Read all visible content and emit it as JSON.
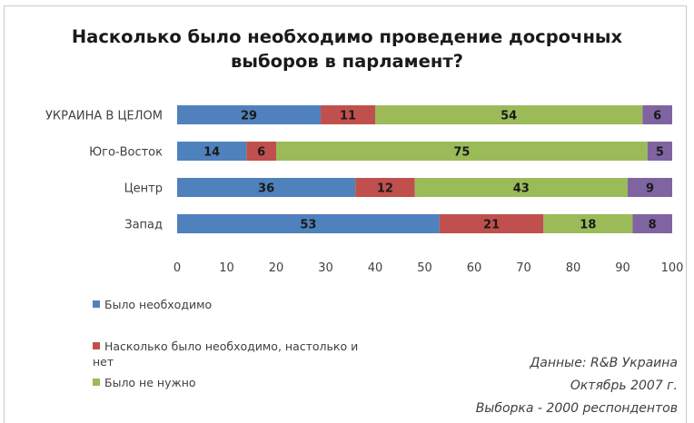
{
  "chart_data": {
    "type": "bar",
    "orientation": "horizontal",
    "stacked": true,
    "title_lines": [
      "Насколько было необходимо проведение досрочных",
      "выборов в парламент?"
    ],
    "categories": [
      "УКРАИНА В ЦЕЛОМ",
      "Юго-Восток",
      "Центр",
      "Запад"
    ],
    "series": [
      {
        "name": "Было необходимо",
        "color": "#4f81bd",
        "values": [
          29,
          14,
          36,
          53
        ]
      },
      {
        "name": "Насколько было необходимо, настолько и нет",
        "color": "#c0504d",
        "values": [
          11,
          6,
          12,
          21
        ]
      },
      {
        "name": "Было не нужно",
        "color": "#9bbb59",
        "values": [
          54,
          75,
          43,
          18
        ]
      },
      {
        "name": "",
        "color": "#8064a2",
        "values": [
          6,
          5,
          9,
          8
        ]
      }
    ],
    "xlim": [
      0,
      100
    ],
    "xticks": [
      "0",
      "10",
      "20",
      "30",
      "40",
      "50",
      "60",
      "70",
      "80",
      "90",
      "100"
    ],
    "grid": false,
    "legend_position": "bottom-left"
  },
  "legend": {
    "item1": "Было необходимо",
    "item2_line1": "Насколько было необходимо, настолько и",
    "item2_line2": "нет",
    "item3": "Было не нужно"
  },
  "source": {
    "line1": "Данные: R&B Украина",
    "line2": "Октябрь 2007 г.",
    "line3": "Выборка - 2000 респондентов"
  }
}
